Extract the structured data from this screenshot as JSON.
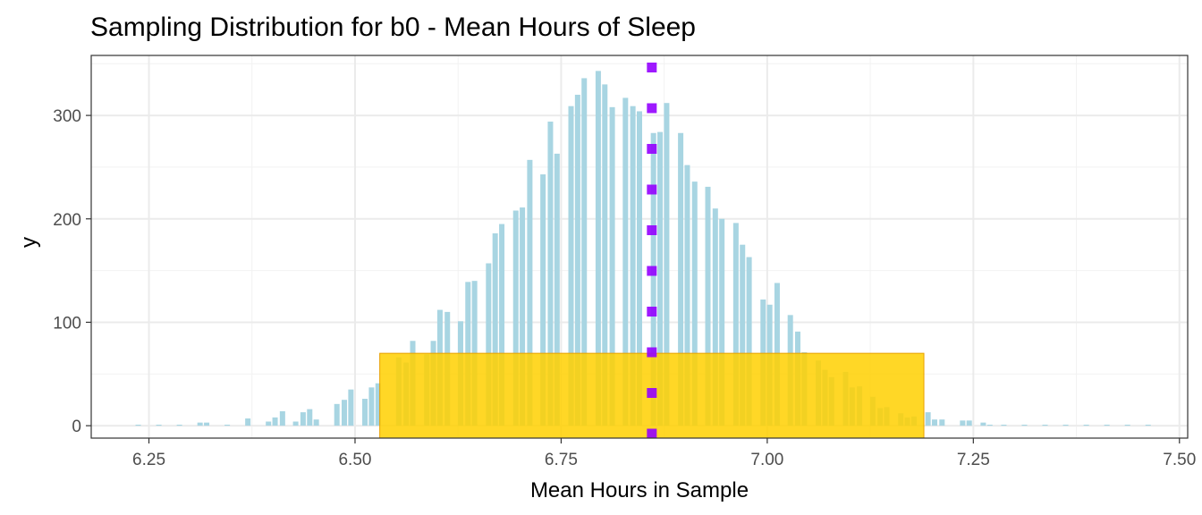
{
  "chart_data": {
    "type": "bar",
    "title": "Sampling Distribution for b0 - Mean Hours of Sleep",
    "xlabel": "Mean Hours in Sample",
    "ylabel": "y",
    "xlim": [
      6.18,
      7.51
    ],
    "ylim": [
      -12,
      358
    ],
    "x_ticks": [
      6.25,
      6.5,
      6.75,
      7.0,
      7.25,
      7.5
    ],
    "x_tick_labels": [
      "6.25",
      "6.50",
      "6.75",
      "7.00",
      "7.25",
      "7.50"
    ],
    "y_ticks": [
      0,
      100,
      200,
      300
    ],
    "y_tick_labels": [
      "0",
      "100",
      "200",
      "300"
    ],
    "grid": true,
    "bar_color": "#a8d5e2",
    "bars": [
      {
        "x": 6.237,
        "y": 1
      },
      {
        "x": 6.262,
        "y": 1
      },
      {
        "x": 6.287,
        "y": 1
      },
      {
        "x": 6.312,
        "y": 3
      },
      {
        "x": 6.32,
        "y": 3
      },
      {
        "x": 6.345,
        "y": 1
      },
      {
        "x": 6.37,
        "y": 7
      },
      {
        "x": 6.395,
        "y": 4
      },
      {
        "x": 6.403,
        "y": 8
      },
      {
        "x": 6.412,
        "y": 14
      },
      {
        "x": 6.428,
        "y": 4
      },
      {
        "x": 6.437,
        "y": 13
      },
      {
        "x": 6.445,
        "y": 16
      },
      {
        "x": 6.453,
        "y": 6
      },
      {
        "x": 6.478,
        "y": 21
      },
      {
        "x": 6.487,
        "y": 25
      },
      {
        "x": 6.495,
        "y": 35
      },
      {
        "x": 6.512,
        "y": 26
      },
      {
        "x": 6.52,
        "y": 37
      },
      {
        "x": 6.528,
        "y": 41
      },
      {
        "x": 6.553,
        "y": 66
      },
      {
        "x": 6.562,
        "y": 61
      },
      {
        "x": 6.57,
        "y": 82
      },
      {
        "x": 6.587,
        "y": 69
      },
      {
        "x": 6.595,
        "y": 82
      },
      {
        "x": 6.603,
        "y": 112
      },
      {
        "x": 6.612,
        "y": 110
      },
      {
        "x": 6.628,
        "y": 101
      },
      {
        "x": 6.637,
        "y": 139
      },
      {
        "x": 6.645,
        "y": 140
      },
      {
        "x": 6.662,
        "y": 157
      },
      {
        "x": 6.67,
        "y": 186
      },
      {
        "x": 6.678,
        "y": 195
      },
      {
        "x": 6.695,
        "y": 208
      },
      {
        "x": 6.703,
        "y": 211
      },
      {
        "x": 6.712,
        "y": 257
      },
      {
        "x": 6.728,
        "y": 243
      },
      {
        "x": 6.737,
        "y": 294
      },
      {
        "x": 6.745,
        "y": 263
      },
      {
        "x": 6.762,
        "y": 309
      },
      {
        "x": 6.77,
        "y": 320
      },
      {
        "x": 6.778,
        "y": 336
      },
      {
        "x": 6.795,
        "y": 343
      },
      {
        "x": 6.803,
        "y": 330
      },
      {
        "x": 6.812,
        "y": 308
      },
      {
        "x": 6.828,
        "y": 317
      },
      {
        "x": 6.837,
        "y": 309
      },
      {
        "x": 6.845,
        "y": 304
      },
      {
        "x": 6.862,
        "y": 283
      },
      {
        "x": 6.87,
        "y": 284
      },
      {
        "x": 6.878,
        "y": 312
      },
      {
        "x": 6.895,
        "y": 283
      },
      {
        "x": 6.903,
        "y": 252
      },
      {
        "x": 6.912,
        "y": 236
      },
      {
        "x": 6.928,
        "y": 231
      },
      {
        "x": 6.937,
        "y": 210
      },
      {
        "x": 6.945,
        "y": 200
      },
      {
        "x": 6.962,
        "y": 196
      },
      {
        "x": 6.97,
        "y": 175
      },
      {
        "x": 6.978,
        "y": 163
      },
      {
        "x": 6.995,
        "y": 122
      },
      {
        "x": 7.003,
        "y": 117
      },
      {
        "x": 7.012,
        "y": 138
      },
      {
        "x": 7.028,
        "y": 107
      },
      {
        "x": 7.037,
        "y": 91
      },
      {
        "x": 7.045,
        "y": 71
      },
      {
        "x": 7.062,
        "y": 63
      },
      {
        "x": 7.07,
        "y": 54
      },
      {
        "x": 7.078,
        "y": 47
      },
      {
        "x": 7.095,
        "y": 52
      },
      {
        "x": 7.103,
        "y": 37
      },
      {
        "x": 7.112,
        "y": 38
      },
      {
        "x": 7.128,
        "y": 28
      },
      {
        "x": 7.137,
        "y": 17
      },
      {
        "x": 7.145,
        "y": 18
      },
      {
        "x": 7.162,
        "y": 12
      },
      {
        "x": 7.17,
        "y": 8
      },
      {
        "x": 7.178,
        "y": 9
      },
      {
        "x": 7.195,
        "y": 13
      },
      {
        "x": 7.203,
        "y": 6
      },
      {
        "x": 7.212,
        "y": 6
      },
      {
        "x": 7.237,
        "y": 5
      },
      {
        "x": 7.245,
        "y": 5
      },
      {
        "x": 7.262,
        "y": 3
      },
      {
        "x": 7.27,
        "y": 1
      },
      {
        "x": 7.287,
        "y": 1
      },
      {
        "x": 7.312,
        "y": 1
      },
      {
        "x": 7.337,
        "y": 1
      },
      {
        "x": 7.362,
        "y": 1
      },
      {
        "x": 7.387,
        "y": 1
      },
      {
        "x": 7.412,
        "y": 1
      },
      {
        "x": 7.437,
        "y": 1
      },
      {
        "x": 7.462,
        "y": 1
      }
    ],
    "highlight_band": {
      "x_from": 6.53,
      "x_to": 7.19,
      "y_from": -12,
      "y_to": 70,
      "color": "#ffd000"
    },
    "mean_line": {
      "x": 6.86,
      "color": "#9400ff",
      "style": "dotted"
    }
  }
}
